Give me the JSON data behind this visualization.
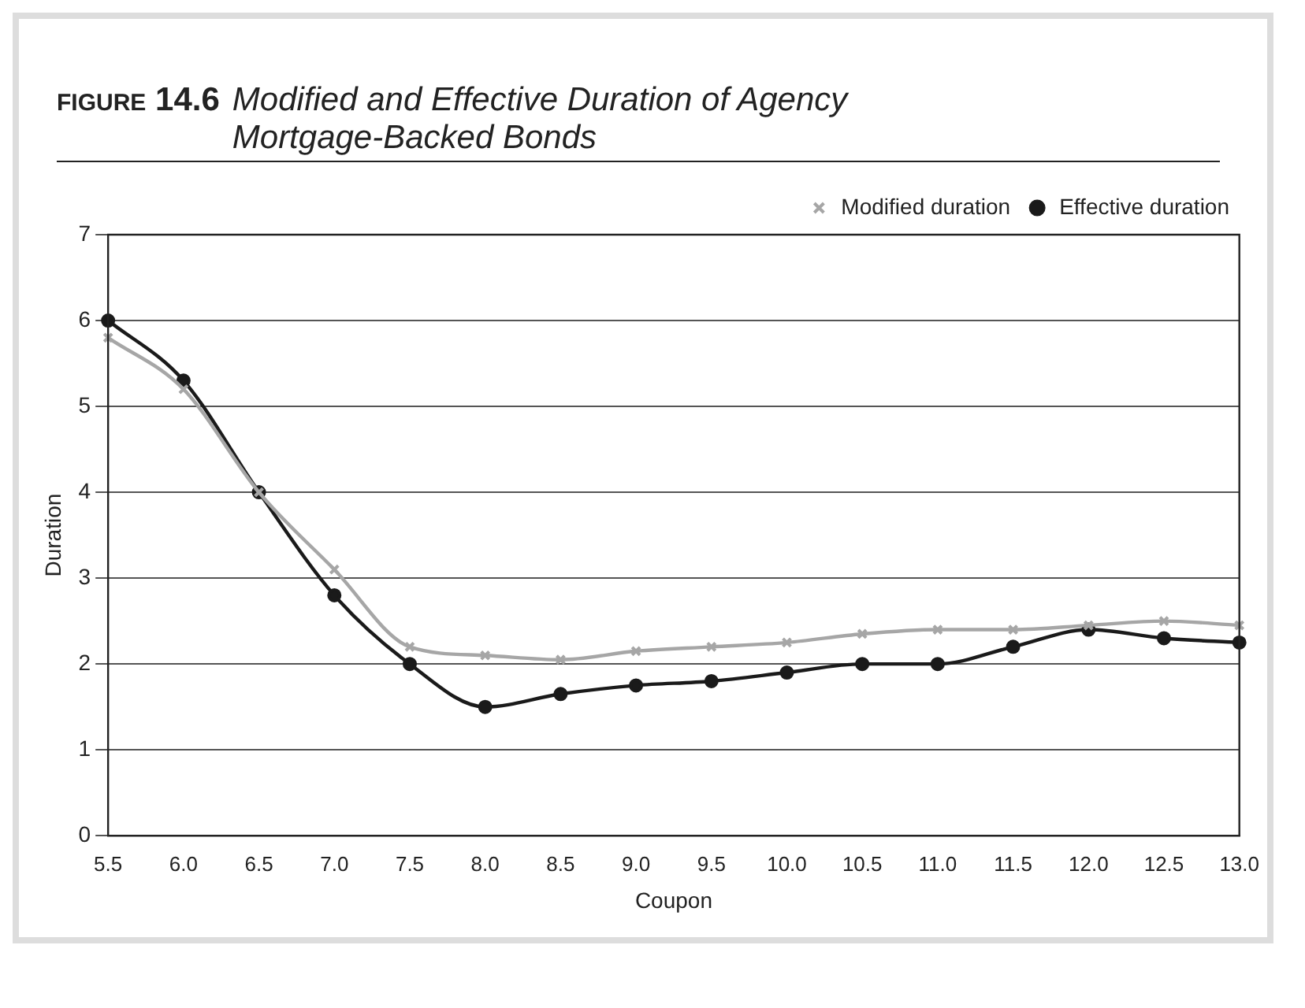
{
  "chart_data": {
    "type": "line",
    "title": "FIGURE 14.6 Modified and Effective Duration of Agency Mortgage-Backed Bonds",
    "xlabel": "Coupon",
    "ylabel": "Duration",
    "categories": [
      "5.5",
      "6.0",
      "6.5",
      "7.0",
      "7.5",
      "8.0",
      "8.5",
      "9.0",
      "9.5",
      "10.0",
      "10.5",
      "11.0",
      "11.5",
      "12.0",
      "12.5",
      "13.0"
    ],
    "series": [
      {
        "name": "Modified duration",
        "color": "#a6a6a6",
        "marker": "cross",
        "values": [
          5.8,
          5.2,
          4.0,
          3.1,
          2.2,
          2.1,
          2.05,
          2.15,
          2.2,
          2.25,
          2.35,
          2.4,
          2.4,
          2.45,
          2.5,
          2.45
        ]
      },
      {
        "name": "Effective duration",
        "color": "#1a1a1a",
        "marker": "circle",
        "values": [
          6.0,
          5.3,
          4.0,
          2.8,
          2.0,
          1.5,
          1.65,
          1.75,
          1.8,
          1.9,
          2.0,
          2.0,
          2.2,
          2.4,
          2.3,
          2.25
        ]
      }
    ],
    "ylim": [
      0,
      7
    ],
    "yticks": [
      0,
      1,
      2,
      3,
      4,
      5,
      6,
      7
    ],
    "grid": "y",
    "legend": "top right",
    "line_style": "solid"
  }
}
